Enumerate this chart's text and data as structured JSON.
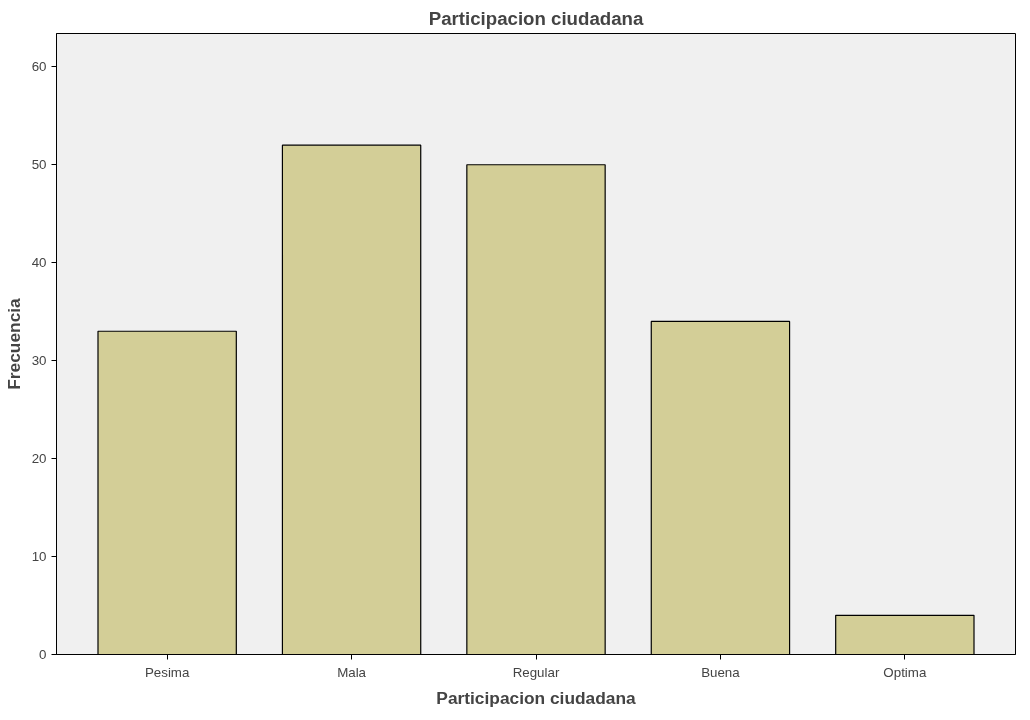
{
  "chart_data": {
    "type": "bar",
    "title": "Participacion ciudadana",
    "xlabel": "Participacion ciudadana",
    "ylabel": "Frecuencia",
    "categories": [
      "Pesima",
      "Mala",
      "Regular",
      "Buena",
      "Optima"
    ],
    "values": [
      33,
      52,
      50,
      34,
      4
    ],
    "color": "#d3ce97",
    "ylim": [
      0,
      63.4
    ],
    "yticks": [
      0,
      10,
      20,
      30,
      40,
      50,
      60
    ],
    "grid": false
  }
}
